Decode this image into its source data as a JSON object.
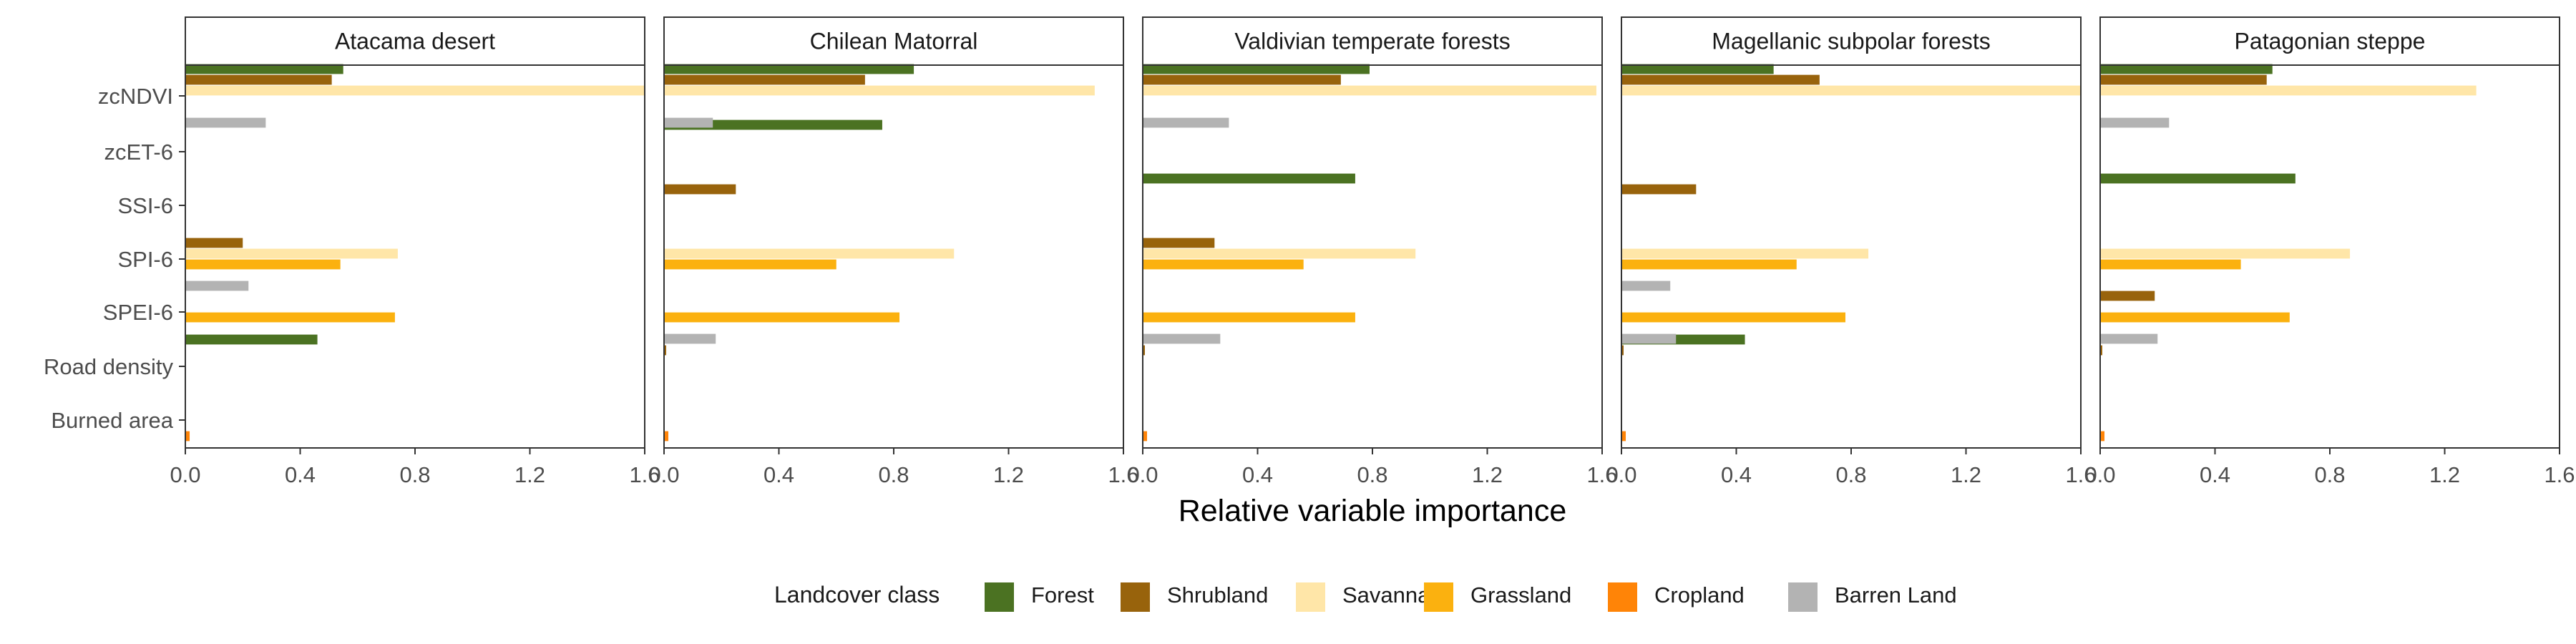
{
  "chart_data": {
    "type": "bar",
    "orientation": "horizontal",
    "facet_by": "Ecoregion",
    "panels": [
      "Atacama desert",
      "Chilean Matorral",
      "Valdivian temperate forests",
      "Magellanic subpolar forests",
      "Patagonian steppe"
    ],
    "categories": [
      "zcNDVI",
      "zcET-6",
      "SSI-6",
      "SPI-6",
      "SPEI-6",
      "Road density",
      "Burned area"
    ],
    "xlabel": "Relative variable importance",
    "ylabel": "",
    "xlim": [
      0,
      1.6
    ],
    "xticks": [
      0,
      0.4,
      0.8,
      1.2,
      1.6
    ],
    "xtick_labels": [
      "0.0",
      "0.4",
      "0.8",
      "1.2",
      "1.6"
    ],
    "grid": false,
    "legend": {
      "title": "Landcover class",
      "position": "bottom"
    },
    "series": [
      {
        "name": "Forest",
        "color": "#4b7222",
        "values": [
          [
            0.55,
            null,
            null,
            null,
            null,
            0.46,
            null
          ],
          [
            0.87,
            0.76,
            null,
            null,
            null,
            null,
            null
          ],
          [
            0.79,
            null,
            0.74,
            null,
            null,
            null,
            null
          ],
          [
            0.53,
            null,
            null,
            null,
            null,
            0.43,
            null
          ],
          [
            0.6,
            null,
            0.68,
            null,
            null,
            null,
            null
          ]
        ]
      },
      {
        "name": "Shrubland",
        "color": "#98630c",
        "values": [
          [
            0.51,
            null,
            null,
            0.2,
            null,
            null,
            null
          ],
          [
            0.7,
            null,
            0.25,
            null,
            null,
            0.005,
            null
          ],
          [
            0.69,
            null,
            null,
            0.25,
            null,
            0.005,
            null
          ],
          [
            0.69,
            null,
            0.26,
            null,
            null,
            0.005,
            null
          ],
          [
            0.58,
            null,
            null,
            null,
            0.19,
            0.005,
            null
          ]
        ]
      },
      {
        "name": "Savanna",
        "color": "#ffe6a8",
        "values": [
          [
            1.6,
            null,
            null,
            0.74,
            null,
            null,
            null
          ],
          [
            1.5,
            null,
            null,
            1.01,
            null,
            null,
            null
          ],
          [
            1.58,
            null,
            null,
            0.95,
            null,
            null,
            null
          ],
          [
            1.68,
            null,
            null,
            0.86,
            null,
            null,
            null
          ],
          [
            1.31,
            null,
            null,
            0.87,
            null,
            null,
            null
          ]
        ]
      },
      {
        "name": "Grassland",
        "color": "#fbb10f",
        "values": [
          [
            null,
            null,
            null,
            0.54,
            0.73,
            null,
            null
          ],
          [
            null,
            null,
            null,
            0.6,
            0.82,
            null,
            null
          ],
          [
            null,
            null,
            null,
            0.56,
            0.74,
            null,
            null
          ],
          [
            null,
            null,
            null,
            0.61,
            0.78,
            null,
            null
          ],
          [
            null,
            null,
            null,
            0.49,
            0.66,
            null,
            null
          ]
        ]
      },
      {
        "name": "Cropland",
        "color": "#ff8407",
        "values": [
          [
            null,
            null,
            null,
            null,
            null,
            null,
            0.015
          ],
          [
            null,
            null,
            null,
            null,
            null,
            null,
            0.015
          ],
          [
            null,
            null,
            null,
            null,
            null,
            null,
            0.015
          ],
          [
            null,
            null,
            null,
            null,
            null,
            null,
            0.015
          ],
          [
            null,
            null,
            null,
            null,
            null,
            null,
            0.015
          ]
        ]
      },
      {
        "name": "Barren Land",
        "color": "#b3b3b3",
        "values": [
          [
            0.28,
            null,
            null,
            0.22,
            null,
            null,
            null
          ],
          [
            0.17,
            null,
            null,
            null,
            0.18,
            null,
            null
          ],
          [
            0.3,
            null,
            null,
            null,
            0.27,
            null,
            null
          ],
          [
            null,
            null,
            null,
            0.17,
            0.19,
            null,
            null
          ],
          [
            0.24,
            null,
            null,
            null,
            0.2,
            null,
            null
          ]
        ]
      }
    ]
  }
}
